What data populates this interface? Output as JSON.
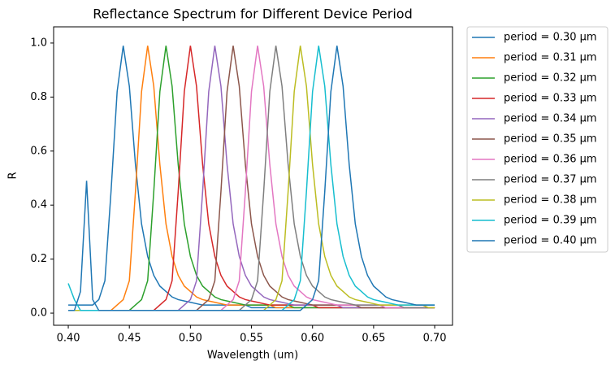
{
  "chart_data": {
    "type": "line",
    "title": "Reflectance Spectrum for Different Device Period",
    "x_label": "Wavelength (um)",
    "y_label": "R",
    "xlim": [
      0.388,
      0.7146
    ],
    "ylim": [
      -0.045,
      1.06
    ],
    "xticks": [
      {
        "value": 0.4,
        "label": "0.40"
      },
      {
        "value": 0.45,
        "label": "0.45"
      },
      {
        "value": 0.5,
        "label": "0.50"
      },
      {
        "value": 0.55,
        "label": "0.55"
      },
      {
        "value": 0.6,
        "label": "0.60"
      },
      {
        "value": 0.65,
        "label": "0.65"
      },
      {
        "value": 0.7,
        "label": "0.70"
      }
    ],
    "yticks": [
      {
        "value": 0,
        "label": "0.0"
      },
      0.2,
      0.4,
      0.6,
      0.8,
      {
        "value": 1,
        "label": "1.0"
      }
    ],
    "legend": "outside-upper-right",
    "x": [
      0.4,
      0.405,
      0.41,
      0.415,
      0.42,
      0.425,
      0.43,
      0.435,
      0.44,
      0.445,
      0.45,
      0.455,
      0.46,
      0.465,
      0.47,
      0.475,
      0.48,
      0.485,
      0.49,
      0.495,
      0.5,
      0.505,
      0.51,
      0.515,
      0.52,
      0.525,
      0.53,
      0.535,
      0.54,
      0.545,
      0.55,
      0.555,
      0.56,
      0.565,
      0.57,
      0.575,
      0.58,
      0.585,
      0.59,
      0.595,
      0.6,
      0.605,
      0.61,
      0.615,
      0.62,
      0.625,
      0.63,
      0.635,
      0.64,
      0.645,
      0.65,
      0.655,
      0.66,
      0.665,
      0.67,
      0.675,
      0.68,
      0.685,
      0.69,
      0.695,
      0.7
    ],
    "series": [
      {
        "name": "period = 0.30 μm",
        "color": "#1f77b4",
        "values": [
          0.03,
          0.03,
          0.03,
          0.03,
          0.03,
          0.05,
          0.12,
          0.45,
          0.82,
          0.99,
          0.84,
          0.55,
          0.33,
          0.21,
          0.14,
          0.1,
          0.08,
          0.06,
          0.05,
          0.045,
          0.04,
          0.035,
          0.03,
          0.03,
          0.03,
          0.03,
          0.03,
          0.03,
          0.03,
          0.03,
          0.02,
          0.02,
          0.02,
          0.02,
          0.02,
          0.02,
          0.02,
          0.02,
          0.02,
          0.02,
          0.02,
          0.02,
          0.02,
          0.02,
          0.02,
          0.02,
          0.02,
          0.02,
          0.02,
          0.02,
          0.02,
          0.02,
          0.02,
          0.02,
          0.02,
          0.02,
          0.02,
          0.02,
          0.02,
          0.02,
          0.02
        ]
      },
      {
        "name": "period = 0.31 μm",
        "color": "#ff7f0e",
        "values": [
          0.01,
          0.01,
          0.01,
          0.01,
          0.01,
          0.01,
          0.01,
          0.01,
          0.03,
          0.05,
          0.12,
          0.45,
          0.82,
          0.99,
          0.84,
          0.55,
          0.33,
          0.21,
          0.14,
          0.1,
          0.08,
          0.06,
          0.05,
          0.045,
          0.04,
          0.035,
          0.03,
          0.03,
          0.03,
          0.03,
          0.03,
          0.03,
          0.03,
          0.03,
          0.02,
          0.02,
          0.02,
          0.02,
          0.02,
          0.02,
          0.02,
          0.02,
          0.02,
          0.02,
          0.02,
          0.02,
          0.02,
          0.02,
          0.02,
          0.02,
          0.02,
          0.02,
          0.02,
          0.02,
          0.02,
          0.02,
          0.02,
          0.02,
          0.02,
          0.02,
          0.02
        ]
      },
      {
        "name": "period = 0.32 μm",
        "color": "#2ca02c",
        "values": [
          0.01,
          0.01,
          0.01,
          0.01,
          0.01,
          0.01,
          0.01,
          0.01,
          0.01,
          0.01,
          0.01,
          0.03,
          0.05,
          0.12,
          0.45,
          0.82,
          0.99,
          0.84,
          0.55,
          0.33,
          0.21,
          0.14,
          0.1,
          0.08,
          0.06,
          0.05,
          0.045,
          0.04,
          0.035,
          0.03,
          0.03,
          0.03,
          0.03,
          0.03,
          0.03,
          0.03,
          0.03,
          0.02,
          0.02,
          0.02,
          0.02,
          0.02,
          0.02,
          0.02,
          0.02,
          0.02,
          0.02,
          0.02,
          0.02,
          0.02,
          0.02,
          0.02,
          0.02,
          0.02,
          0.02,
          0.02,
          0.02,
          0.02,
          0.02,
          0.02,
          0.02
        ]
      },
      {
        "name": "period = 0.33 μm",
        "color": "#d62728",
        "values": [
          0.01,
          0.01,
          0.01,
          0.01,
          0.01,
          0.01,
          0.01,
          0.01,
          0.01,
          0.01,
          0.01,
          0.01,
          0.01,
          0.01,
          0.01,
          0.03,
          0.05,
          0.12,
          0.45,
          0.82,
          0.99,
          0.84,
          0.55,
          0.33,
          0.21,
          0.14,
          0.1,
          0.08,
          0.06,
          0.05,
          0.045,
          0.04,
          0.035,
          0.03,
          0.03,
          0.03,
          0.03,
          0.03,
          0.03,
          0.03,
          0.03,
          0.02,
          0.02,
          0.02,
          0.02,
          0.02,
          0.02,
          0.02,
          0.02,
          0.02,
          0.02,
          0.02,
          0.02,
          0.02,
          0.02,
          0.02,
          0.02,
          0.02,
          0.02,
          0.02,
          0.02
        ]
      },
      {
        "name": "period = 0.34 μm",
        "color": "#9467bd",
        "values": [
          0.01,
          0.01,
          0.01,
          0.01,
          0.01,
          0.01,
          0.01,
          0.01,
          0.01,
          0.01,
          0.01,
          0.01,
          0.01,
          0.01,
          0.01,
          0.01,
          0.01,
          0.01,
          0.01,
          0.03,
          0.05,
          0.12,
          0.45,
          0.82,
          0.99,
          0.84,
          0.55,
          0.33,
          0.21,
          0.14,
          0.1,
          0.08,
          0.06,
          0.05,
          0.045,
          0.04,
          0.035,
          0.03,
          0.03,
          0.03,
          0.03,
          0.03,
          0.03,
          0.03,
          0.03,
          0.02,
          0.02,
          0.02,
          0.02,
          0.02,
          0.02,
          0.02,
          0.02,
          0.02,
          0.02,
          0.02,
          0.02,
          0.02,
          0.02,
          0.02,
          0.02
        ]
      },
      {
        "name": "period = 0.35 μm",
        "color": "#8c564b",
        "values": [
          0.01,
          0.01,
          0.01,
          0.01,
          0.01,
          0.01,
          0.01,
          0.01,
          0.01,
          0.01,
          0.01,
          0.01,
          0.01,
          0.01,
          0.01,
          0.01,
          0.01,
          0.01,
          0.01,
          0.01,
          0.01,
          0.01,
          0.03,
          0.05,
          0.12,
          0.45,
          0.82,
          0.99,
          0.84,
          0.55,
          0.33,
          0.21,
          0.14,
          0.1,
          0.08,
          0.06,
          0.05,
          0.045,
          0.04,
          0.035,
          0.03,
          0.03,
          0.03,
          0.03,
          0.03,
          0.03,
          0.03,
          0.03,
          0.02,
          0.02,
          0.02,
          0.02,
          0.02,
          0.02,
          0.02,
          0.02,
          0.02,
          0.02,
          0.02,
          0.02,
          0.02
        ]
      },
      {
        "name": "period = 0.36 μm",
        "color": "#e377c2",
        "values": [
          0.01,
          0.01,
          0.01,
          0.01,
          0.01,
          0.01,
          0.01,
          0.01,
          0.01,
          0.01,
          0.01,
          0.01,
          0.01,
          0.01,
          0.01,
          0.01,
          0.01,
          0.01,
          0.01,
          0.01,
          0.01,
          0.01,
          0.01,
          0.01,
          0.01,
          0.01,
          0.03,
          0.05,
          0.12,
          0.45,
          0.82,
          0.99,
          0.84,
          0.55,
          0.33,
          0.21,
          0.14,
          0.1,
          0.08,
          0.06,
          0.05,
          0.045,
          0.04,
          0.035,
          0.03,
          0.03,
          0.03,
          0.03,
          0.03,
          0.03,
          0.03,
          0.03,
          0.02,
          0.02,
          0.02,
          0.02,
          0.02,
          0.02,
          0.02,
          0.02,
          0.02
        ]
      },
      {
        "name": "period = 0.37 μm",
        "color": "#7f7f7f",
        "values": [
          0.01,
          0.01,
          0.01,
          0.01,
          0.01,
          0.01,
          0.01,
          0.01,
          0.01,
          0.01,
          0.01,
          0.01,
          0.01,
          0.01,
          0.01,
          0.01,
          0.01,
          0.01,
          0.01,
          0.01,
          0.01,
          0.01,
          0.01,
          0.01,
          0.01,
          0.01,
          0.01,
          0.01,
          0.01,
          0.03,
          0.05,
          0.12,
          0.45,
          0.82,
          0.99,
          0.84,
          0.55,
          0.33,
          0.21,
          0.14,
          0.1,
          0.08,
          0.06,
          0.05,
          0.045,
          0.04,
          0.035,
          0.03,
          0.03,
          0.03,
          0.03,
          0.03,
          0.03,
          0.03,
          0.03,
          0.02,
          0.02,
          0.02,
          0.02,
          0.02,
          0.02
        ]
      },
      {
        "name": "period = 0.38 μm",
        "color": "#bcbd22",
        "values": [
          0.01,
          0.01,
          0.01,
          0.01,
          0.01,
          0.01,
          0.01,
          0.01,
          0.01,
          0.01,
          0.01,
          0.01,
          0.01,
          0.01,
          0.01,
          0.01,
          0.01,
          0.01,
          0.01,
          0.01,
          0.01,
          0.01,
          0.01,
          0.01,
          0.01,
          0.01,
          0.01,
          0.01,
          0.01,
          0.01,
          0.01,
          0.01,
          0.01,
          0.03,
          0.05,
          0.12,
          0.45,
          0.82,
          0.99,
          0.84,
          0.55,
          0.33,
          0.21,
          0.14,
          0.1,
          0.08,
          0.06,
          0.05,
          0.045,
          0.04,
          0.035,
          0.03,
          0.03,
          0.03,
          0.03,
          0.03,
          0.03,
          0.03,
          0.03,
          0.02,
          0.02
        ]
      },
      {
        "name": "period = 0.39 μm",
        "color": "#17becf",
        "values": [
          0.11,
          0.05,
          0.01,
          0.01,
          0.01,
          0.01,
          0.01,
          0.01,
          0.01,
          0.01,
          0.01,
          0.01,
          0.01,
          0.01,
          0.01,
          0.01,
          0.01,
          0.01,
          0.01,
          0.01,
          0.01,
          0.01,
          0.01,
          0.01,
          0.01,
          0.01,
          0.01,
          0.01,
          0.01,
          0.01,
          0.01,
          0.01,
          0.01,
          0.01,
          0.01,
          0.01,
          0.03,
          0.05,
          0.12,
          0.45,
          0.82,
          0.99,
          0.84,
          0.55,
          0.33,
          0.21,
          0.14,
          0.1,
          0.08,
          0.06,
          0.05,
          0.045,
          0.04,
          0.035,
          0.03,
          0.03,
          0.03,
          0.03,
          0.03,
          0.03,
          0.03
        ]
      },
      {
        "name": "period = 0.40 μm",
        "color": "#1f77b4",
        "values": [
          0.01,
          0.01,
          0.08,
          0.49,
          0.05,
          0.01,
          0.01,
          0.01,
          0.01,
          0.01,
          0.01,
          0.01,
          0.01,
          0.01,
          0.01,
          0.01,
          0.01,
          0.01,
          0.01,
          0.01,
          0.01,
          0.01,
          0.01,
          0.01,
          0.01,
          0.01,
          0.01,
          0.01,
          0.01,
          0.01,
          0.01,
          0.01,
          0.01,
          0.01,
          0.01,
          0.01,
          0.01,
          0.01,
          0.01,
          0.03,
          0.05,
          0.12,
          0.45,
          0.82,
          0.99,
          0.84,
          0.55,
          0.33,
          0.21,
          0.14,
          0.1,
          0.08,
          0.06,
          0.05,
          0.045,
          0.04,
          0.035,
          0.03,
          0.03,
          0.03,
          0.03
        ]
      }
    ]
  }
}
